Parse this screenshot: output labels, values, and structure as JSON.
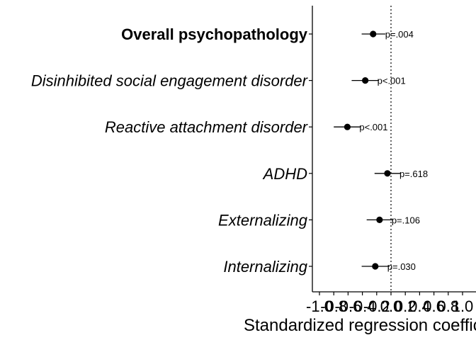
{
  "chart_data": {
    "type": "scatter",
    "subtype": "forest-plot",
    "xlabel": "Standardized regression coefficient",
    "xlim": [
      -1.1,
      1.05
    ],
    "x_ticks": [
      -1.0,
      -0.8,
      -0.6,
      -0.4,
      -0.2,
      0.0,
      0.2,
      0.4,
      0.6,
      0.8,
      1.0
    ],
    "x_tick_labels": [
      "-1.0",
      "-0.8",
      "-0.6",
      "-0.4",
      "-0.2",
      "0.0",
      "0.2",
      "0.4",
      "0.6",
      "0.8",
      "1.0"
    ],
    "reference_line": 0.0,
    "grid": false,
    "legend": "none",
    "rows": [
      {
        "label": "Overall psychopathology",
        "bold": true,
        "estimate": -0.25,
        "ci": [
          -0.41,
          -0.08
        ],
        "p": "p=.004"
      },
      {
        "label": "Disinhibited social engagement disorder",
        "bold": false,
        "estimate": -0.36,
        "ci": [
          -0.55,
          -0.17
        ],
        "p": "p<.001"
      },
      {
        "label": "Reactive attachment disorder",
        "bold": false,
        "estimate": -0.61,
        "ci": [
          -0.8,
          -0.42
        ],
        "p": "p<.001"
      },
      {
        "label": "ADHD",
        "bold": false,
        "estimate": -0.05,
        "ci": [
          -0.23,
          0.14
        ],
        "p": "p=.618"
      },
      {
        "label": "Externalizing",
        "bold": false,
        "estimate": -0.16,
        "ci": [
          -0.34,
          0.03
        ],
        "p": "p=.106"
      },
      {
        "label": "Internalizing",
        "bold": false,
        "estimate": -0.22,
        "ci": [
          -0.41,
          -0.02
        ],
        "p": "p=.030"
      }
    ],
    "colors": {
      "point": "#000000",
      "line": "#000000"
    }
  }
}
